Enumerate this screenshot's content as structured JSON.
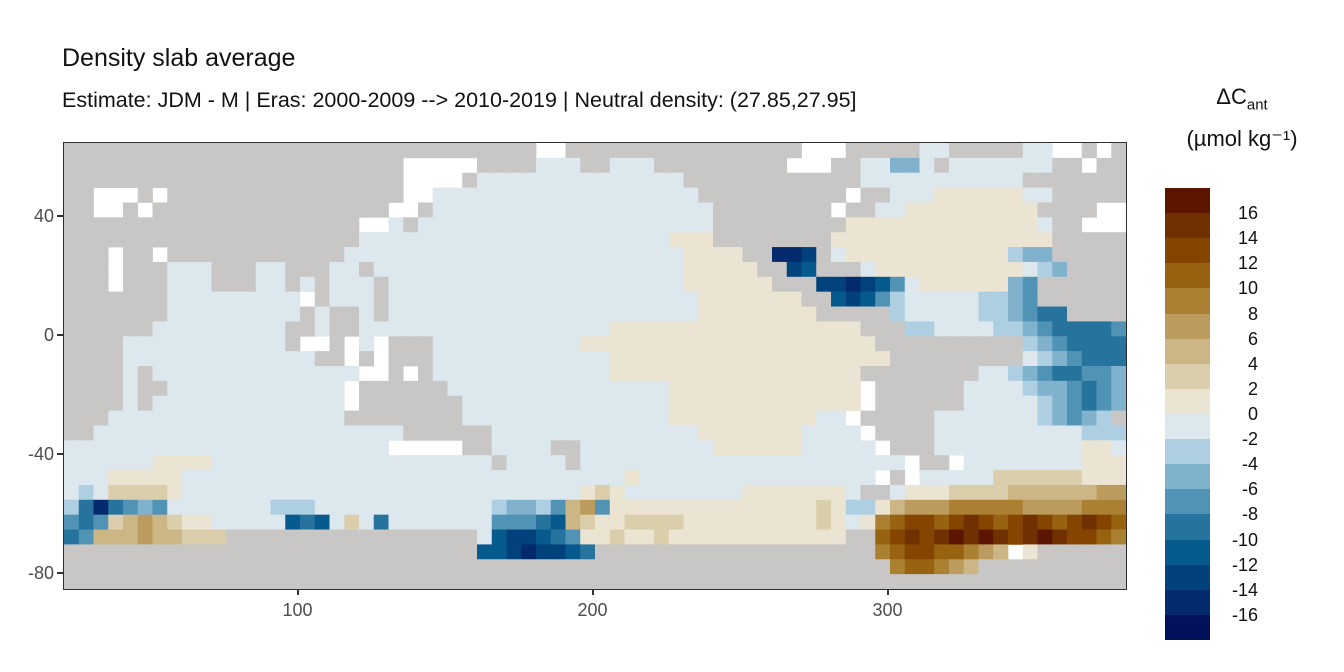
{
  "title": "Density slab average",
  "subtitle": "Estimate: JDM - M | Eras: 2000-2009 --> 2010-2019 | Neutral density: (27.85,27.95]",
  "legend": {
    "title_main": "ΔC",
    "title_sub": "ant",
    "unit": "(µmol kg⁻¹)",
    "tick_labels": [
      "16",
      "14",
      "12",
      "10",
      "8",
      "6",
      "4",
      "2",
      "0",
      "-2",
      "-4",
      "-6",
      "-8",
      "-10",
      "-12",
      "-14",
      "-16"
    ],
    "colors_top_to_bottom": [
      "#5e1500",
      "#713000",
      "#854500",
      "#976310",
      "#aa8133",
      "#bb9c5e",
      "#ccb685",
      "#dbcfab",
      "#ebe4d3",
      "#dce8ee",
      "#aecfe1",
      "#81b2cd",
      "#5193b5",
      "#26739e",
      "#075a8d",
      "#02427c",
      "#042a6e",
      "#03105c"
    ]
  },
  "axes": {
    "x_tick_labels": [
      "100",
      "200",
      "300"
    ],
    "x_tick_values": [
      100,
      200,
      300
    ],
    "y_tick_labels": [
      "40",
      "0",
      "-40",
      "-80"
    ],
    "y_tick_values": [
      40,
      0,
      -40,
      -80
    ]
  },
  "chart_data": {
    "type": "heatmap",
    "title": "Density slab average",
    "subtitle": "Estimate: JDM - M | Eras: 2000-2009 --> 2010-2019 | Neutral density: (27.85,27.95]",
    "variable": "ΔC_ant (µmol kg⁻¹)",
    "xlabel": "",
    "ylabel": "",
    "x_axis": {
      "ticks": [
        100,
        200,
        300
      ],
      "range_lon": [
        20.5,
        380.5
      ]
    },
    "y_axis": {
      "ticks": [
        40,
        0,
        -40,
        -80
      ],
      "range_lat": [
        -85,
        65
      ]
    },
    "legend_breaks": [
      16,
      14,
      12,
      10,
      8,
      6,
      4,
      2,
      0,
      -2,
      -4,
      -6,
      -8,
      -10,
      -12,
      -14,
      -16
    ],
    "bin_width": 2,
    "value_encoding": {
      "0": "< -16",
      "1": "-16 to -14",
      "2": "-14 to -12",
      "3": "-12 to -10",
      "4": "-10 to -8",
      "5": "-8 to -6",
      "6": "-6 to -4",
      "7": "-4 to -2",
      "8": "-2 to 0",
      "9": "0 to 2",
      "A": "2 to 4",
      "B": "4 to 6",
      "C": "6 to 8",
      "D": "8 to 10",
      "E": "10 to 12",
      "F": "12 to 14",
      "G": "14 to 16",
      "H": "> 16",
      "L": "land",
      ".": "no data (white)"
    },
    "palette": {
      "0": "#03105c",
      "1": "#042a6e",
      "2": "#02427c",
      "3": "#075a8d",
      "4": "#26739e",
      "5": "#5193b5",
      "6": "#81b2cd",
      "7": "#aecfe1",
      "8": "#dce8ee",
      "9": "#ebe4d3",
      "A": "#dbcfab",
      "B": "#ccb685",
      "C": "#bb9c5e",
      "D": "#aa8133",
      "E": "#976310",
      "F": "#854500",
      "G": "#713000",
      "H": "#5e1500"
    },
    "land_color": "#c8c7c5",
    "no_data_color": "#ffffff",
    "grid_cell_deg": 5,
    "grid_origin": "lon 20 at left, lat 65 at top; rows north to south",
    "grid_rows": [
      "LLLLLLLLLLLLLLLLLLLLLLLLLLLLLLLL..LLLLLLLLLLLLLLLL...LLLLL88LLLLL88..L.LL",
      "LLLLLLLLLLLLLLLLLLLLLLL.....LLLL888LL888LLLLLLLLL...LL88668L8888888LL.LL",
      "LLLLLLLLLLLLLLLLLLLLLLL....L888888888888 88LLLLLLLLLLLL8888888888 8LLLLLLL",
      "LL...L.LLLLLLLLLLLLLLLL..888888888888888888LLLLLLLLLL.LL88899999988LLLLL",
      "LL..L.LLLLLLLLLLLLLLLL..L888888888888888 8888LLLLLLLL.LL88999999999LLLL..",
      "LLLLLLLLLLLLLLLLLLLL..8L8888888888888888 8888LLLLLLLLL99999999999998LL...",
      "LLLLLLLLLLLLLLLLLLLL88888888888888888888 8999LLLLLLLL999999999999999LLLLLL",
      "LLL.LL.LLLLLLLLLLLL888888888888888888888 889999LL112L899999999999766LLLLL",
      "LLL.LLL888LLL88LLL88L88888888888888888888899999LL23LLL89999999999876LLLLL",
      "LLL.LLL888LLL88L8L888L8888888888888888888 8999999LLL22123589999996 5LLLLLLL",
      "LLLLLLL888888888.L888L8888888888888888888 889999999LL3235788888776 5LLLLLLL",
      "LLLLLLL888888888L8LL8L8888888888888888888 8899999999LLLLL78888877 6544LLLLL",
      "LLLLLL888888888LL8LL88888888888888888999 99999999999999LLL77888877 6544445LL",
      "LLLL88888888888L..L.8.LLL888888888899999 999999999999999LLLLLLLLLL76544445LL",
      "LLLL888888888888 8LL.L.LLL88888888888899 99999999999999999LLLLLLLLL876544456L",
      "LLLL8L88888888888888..L.L888888888888999 99999999999999LLLLLLLL8876544556L",
      "LLLL8LL888888888888.LLLLLL8888888888888 889999999999999.LLLLLL88887665456L",
      "LLLL8L8888888888888.LLLLLLL888888888888 889999999999999.LLLLLL88888765456L",
      "LLL8888888888888888LLLLLLLL888888888888 88999999999988.LLLLL888888876567L",
      "LL88888888888888888 8888LLLLLL888888888888 889999999 8888.LLLL88888888887777L",
      "888888888888888888 8888.....LL8888LL88888888899999988888.LLL8888888888998888",
      "888888999988888888 8888888888 8L8888L88888888888888888 88888.LL.8888888899999988",
      "8889999988888888888888888888888888888898 88888888888 8888.L.88888AAAAAA999999",
      "878AAAA98888888888888888888888888889A988 88888899999998LL8999AAAABBBBBBCCC",
      "7414565888888877788888888888876675BC5999 99999999999A9779BCCCDDDDDCCCCDDD",
      "545ABCBA99888883438A84888888855543BA99AA AA999999999A989DEFFEFGFEFGFEFGFE",
      "45BBBCBBAAALLLLLLLLLLLLLLLLL832234599A99 A999999999999LLEFGFGHGHGFGHGFFED",
      "LLLLLLLLLLLLLLLLLLLLLLLLLLLL33212234LLLL LLLLLLLLLLLLLLLDEFFEEDCB.9LLLLLL",
      "LLLLLLLLLLLLLLLLLLLLLLLLLLLLLLLLLLLLLLLL LLLLLLLLLLLLLLLLDEEDCBLLLLLLLLLL",
      "LLLLLLLLLLLLLLLLLLLLLLLLLLLLLLLLLLLLLLLL LLLLLLLLLLLLLLLLLLLLLLLLLLLLLLLL"
    ]
  }
}
